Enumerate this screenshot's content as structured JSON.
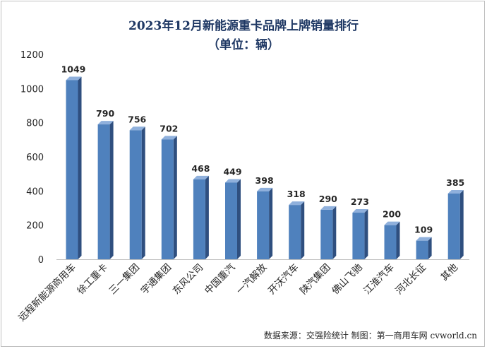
{
  "chart_data": {
    "type": "bar",
    "title": "2023年12月新能源重卡品牌上牌销量排行",
    "subtitle": "（单位：辆）",
    "categories": [
      "远程新能源商用车",
      "徐工重卡",
      "三一集团",
      "宇通集团",
      "东风公司",
      "中国重汽",
      "一汽解放",
      "开沃汽车",
      "陕汽集团",
      "佛山飞驰",
      "江淮汽车",
      "河北长征",
      "其他"
    ],
    "values": [
      1049,
      790,
      756,
      702,
      468,
      449,
      398,
      318,
      290,
      273,
      200,
      109,
      385
    ],
    "ylim": [
      0,
      1200
    ],
    "yticks": [
      0,
      200,
      400,
      600,
      800,
      1000,
      1200
    ],
    "grid": false,
    "legend": "none",
    "colors": {
      "bar_front": "#4f81bd",
      "bar_side": "#2f4f7f",
      "bar_top": "#8fb0dc",
      "label": "#262626",
      "axis": "#bfbfbf"
    }
  },
  "source": "数据来源：交强险统计  制图：第一商用车网 cvworld.cn"
}
